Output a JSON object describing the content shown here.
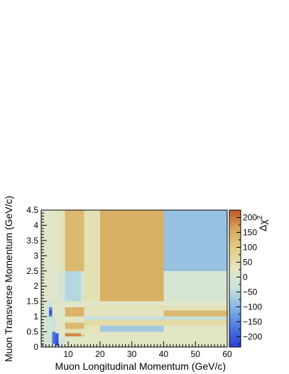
{
  "chart_data": {
    "type": "heatmap",
    "title": "",
    "xlabel": "Muon Longitudinal Momentum (GeV/c)",
    "ylabel": "Muon Transverse Momentum (GeV/c)",
    "zlabel": "Δχ²",
    "zlabel_base": "Δχ",
    "zlabel_sup": "2",
    "xlim": [
      1.5,
      60
    ],
    "ylim": [
      0,
      4.5
    ],
    "zlim": [
      -235,
      225
    ],
    "x_ticks": [
      10,
      20,
      30,
      40,
      50,
      60
    ],
    "x_tick_labels": [
      "10",
      "20",
      "30",
      "40",
      "50",
      "60"
    ],
    "y_ticks": [
      0,
      0.5,
      1,
      1.5,
      2,
      2.5,
      3,
      3.5,
      4,
      4.5
    ],
    "y_tick_labels": [
      "0",
      "0.5",
      "1",
      "1.5",
      "2",
      "2.5",
      "3",
      "3.5",
      "4",
      "4.5"
    ],
    "z_ticks": [
      200,
      150,
      100,
      50,
      0,
      -50,
      -100,
      -150,
      -200
    ],
    "z_tick_labels": [
      "200",
      "150",
      "100",
      "50",
      "0",
      "−50",
      "−100",
      "−150",
      "−200"
    ],
    "grid": false,
    "legend": "color bar at right",
    "cells": [
      {
        "x": [
          1.5,
          3
        ],
        "y": [
          0,
          4.5
        ],
        "z": 10
      },
      {
        "x": [
          3,
          7
        ],
        "y": [
          0,
          4.5
        ],
        "z": 20
      },
      {
        "x": [
          7,
          9
        ],
        "y": [
          0,
          4.5
        ],
        "z": 40
      },
      {
        "x": [
          9,
          15
        ],
        "y": [
          0,
          4.5
        ],
        "z": 130
      },
      {
        "x": [
          15,
          20
        ],
        "y": [
          0,
          4.5
        ],
        "z": 45
      },
      {
        "x": [
          20,
          40
        ],
        "y": [
          0,
          4.5
        ],
        "z": 150
      },
      {
        "x": [
          40,
          60
        ],
        "y": [
          0,
          4.5
        ],
        "z": -85
      },
      {
        "x": [
          40,
          60
        ],
        "y": [
          0,
          2.5
        ],
        "z": -5
      },
      {
        "x": [
          7,
          9
        ],
        "y": [
          0,
          2.5
        ],
        "z": -15
      },
      {
        "x": [
          9,
          14
        ],
        "y": [
          1.5,
          2.5
        ],
        "z": -55
      },
      {
        "x": [
          14,
          15
        ],
        "y": [
          1.5,
          2.5
        ],
        "z": -5
      },
      {
        "x": [
          1.5,
          3
        ],
        "y": [
          0,
          1.5
        ],
        "z": 20
      },
      {
        "x": [
          3,
          4
        ],
        "y": [
          0,
          1.5
        ],
        "z": -20
      },
      {
        "x": [
          4,
          5
        ],
        "y": [
          1.4,
          1.5
        ],
        "z": -35
      },
      {
        "x": [
          4,
          5
        ],
        "y": [
          1.3,
          1.4
        ],
        "z": -40
      },
      {
        "x": [
          4,
          5
        ],
        "y": [
          1.2,
          1.3
        ],
        "z": -160
      },
      {
        "x": [
          4,
          5
        ],
        "y": [
          1.1,
          1.2
        ],
        "z": -210
      },
      {
        "x": [
          4,
          5
        ],
        "y": [
          1.0,
          1.1
        ],
        "z": -180
      },
      {
        "x": [
          4,
          5
        ],
        "y": [
          0.9,
          1.0
        ],
        "z": -40
      },
      {
        "x": [
          4,
          5
        ],
        "y": [
          0,
          0.9
        ],
        "z": -10
      },
      {
        "x": [
          5,
          6
        ],
        "y": [
          1.0,
          1.5
        ],
        "z": 30
      },
      {
        "x": [
          5,
          6
        ],
        "y": [
          0,
          1.0
        ],
        "z": -30
      },
      {
        "x": [
          5,
          6
        ],
        "y": [
          0.1,
          0.5
        ],
        "z": -180
      },
      {
        "x": [
          6,
          7
        ],
        "y": [
          0,
          1.5
        ],
        "z": 10
      },
      {
        "x": [
          6,
          7
        ],
        "y": [
          0.15,
          0.45
        ],
        "z": -200
      },
      {
        "x": [
          6,
          7
        ],
        "y": [
          0.05,
          0.15
        ],
        "z": -230
      },
      {
        "x": [
          7,
          9
        ],
        "y": [
          0.3,
          1.5
        ],
        "z": 20
      },
      {
        "x": [
          9,
          15
        ],
        "y": [
          1.3,
          1.5
        ],
        "z": 20
      },
      {
        "x": [
          9,
          15
        ],
        "y": [
          1.0,
          1.3
        ],
        "z": 140
      },
      {
        "x": [
          9,
          15
        ],
        "y": [
          0.8,
          1.0
        ],
        "z": 30
      },
      {
        "x": [
          9,
          15
        ],
        "y": [
          0.6,
          0.8
        ],
        "z": 130
      },
      {
        "x": [
          9,
          15
        ],
        "y": [
          0.4,
          0.6
        ],
        "z": 40
      },
      {
        "x": [
          9,
          14
        ],
        "y": [
          0.35,
          0.45
        ],
        "z": 185
      },
      {
        "x": [
          9,
          15
        ],
        "y": [
          0,
          0.35
        ],
        "z": 20
      },
      {
        "x": [
          15,
          60
        ],
        "y": [
          1.35,
          1.5
        ],
        "z": 20
      },
      {
        "x": [
          15,
          60
        ],
        "y": [
          1.2,
          1.35
        ],
        "z": 40
      },
      {
        "x": [
          15,
          40
        ],
        "y": [
          1.0,
          1.2
        ],
        "z": 30
      },
      {
        "x": [
          40,
          60
        ],
        "y": [
          1.0,
          1.2
        ],
        "z": 130
      },
      {
        "x": [
          15,
          60
        ],
        "y": [
          0.9,
          1.0
        ],
        "z": -40
      },
      {
        "x": [
          15,
          60
        ],
        "y": [
          0.7,
          0.9
        ],
        "z": 60
      },
      {
        "x": [
          15,
          20
        ],
        "y": [
          0.5,
          0.7
        ],
        "z": 40
      },
      {
        "x": [
          20,
          40
        ],
        "y": [
          0.5,
          0.7
        ],
        "z": -75
      },
      {
        "x": [
          40,
          60
        ],
        "y": [
          0.5,
          0.7
        ],
        "z": 20
      },
      {
        "x": [
          15,
          60
        ],
        "y": [
          0.3,
          0.5
        ],
        "z": 30
      },
      {
        "x": [
          15,
          60
        ],
        "y": [
          0,
          0.3
        ],
        "z": 25
      }
    ]
  },
  "colors": {
    "scale": [
      "#2c3cd0",
      "#4a7ae0",
      "#84b4e2",
      "#c8e3df",
      "#e3e6c4",
      "#e2ce86",
      "#d8a960",
      "#c25a28"
    ],
    "frame": "#000000",
    "background": "#ffffff"
  }
}
